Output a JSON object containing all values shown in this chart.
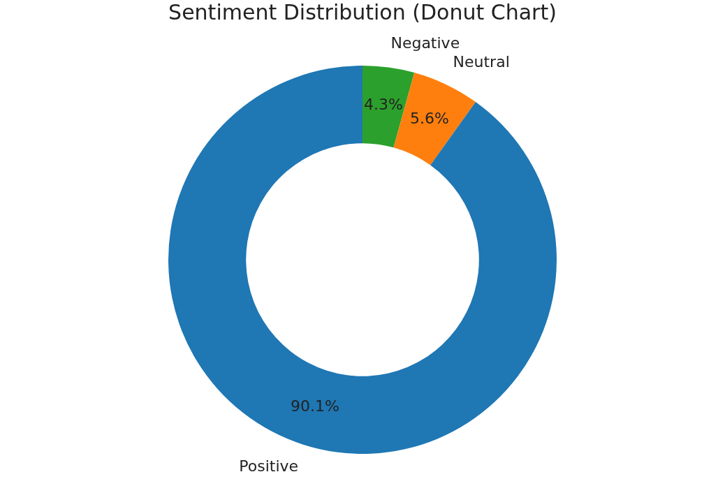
{
  "chart_data": {
    "type": "donut",
    "title": "Sentiment Distribution (Donut Chart)",
    "categories": [
      "Negative",
      "Neutral",
      "Positive"
    ],
    "values": [
      4.3,
      5.6,
      90.1
    ],
    "colors": [
      "#2ca02c",
      "#ff7f0e",
      "#1f77b4"
    ],
    "value_labels": [
      "4.3%",
      "5.6%",
      "90.1%"
    ],
    "legend": false
  }
}
